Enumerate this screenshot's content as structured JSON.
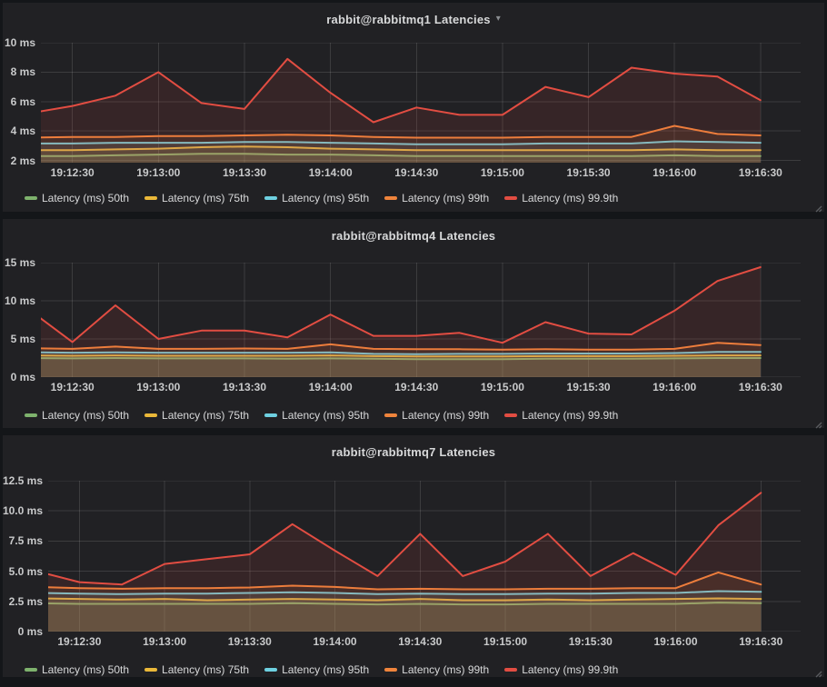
{
  "colors": {
    "page_bg": "#141619",
    "panel_bg": "#212124",
    "grid": "rgba(255,255,255,0.12)",
    "text": "#d8d9da",
    "axis_text": "#c9cacb"
  },
  "chart_data": [
    {
      "type": "area",
      "title": "rabbit@rabbitmq1 Latencies",
      "menu_caret": "▾",
      "ylabel_unit": "ms",
      "grid": true,
      "legend_position": "bottom",
      "ylim": [
        1.85,
        10
      ],
      "x_domain_s": [
        4,
        269
      ],
      "points_t_s": [
        0,
        15,
        30,
        45,
        60,
        75,
        90,
        105,
        120,
        135,
        150,
        165,
        180,
        195,
        210,
        225,
        240,
        255
      ],
      "x_ticks": [
        {
          "t": 15,
          "label": "19:12:30"
        },
        {
          "t": 45,
          "label": "19:13:00"
        },
        {
          "t": 75,
          "label": "19:13:30"
        },
        {
          "t": 105,
          "label": "19:14:00"
        },
        {
          "t": 135,
          "label": "19:14:30"
        },
        {
          "t": 165,
          "label": "19:15:00"
        },
        {
          "t": 195,
          "label": "19:15:30"
        },
        {
          "t": 225,
          "label": "19:16:00"
        },
        {
          "t": 255,
          "label": "19:16:30"
        }
      ],
      "y_ticks": [
        {
          "v": 2,
          "label": "2 ms"
        },
        {
          "v": 4,
          "label": "4 ms"
        },
        {
          "v": 6,
          "label": "6 ms"
        },
        {
          "v": 8,
          "label": "8 ms"
        },
        {
          "v": 10,
          "label": "10 ms"
        }
      ],
      "series": [
        {
          "name": "Latency (ms) 50th",
          "color": "#7EB26D",
          "values": [
            2.3,
            2.3,
            2.35,
            2.4,
            2.45,
            2.45,
            2.4,
            2.4,
            2.35,
            2.3,
            2.3,
            2.3,
            2.3,
            2.3,
            2.3,
            2.35,
            2.3,
            2.3
          ]
        },
        {
          "name": "Latency (ms) 75th",
          "color": "#EAB839",
          "values": [
            2.7,
            2.7,
            2.75,
            2.8,
            2.9,
            2.95,
            2.9,
            2.8,
            2.75,
            2.7,
            2.7,
            2.7,
            2.7,
            2.7,
            2.7,
            2.75,
            2.7,
            2.7
          ]
        },
        {
          "name": "Latency (ms) 95th",
          "color": "#6ED0E0",
          "values": [
            3.15,
            3.15,
            3.2,
            3.2,
            3.2,
            3.25,
            3.25,
            3.2,
            3.15,
            3.1,
            3.1,
            3.1,
            3.15,
            3.15,
            3.15,
            3.3,
            3.25,
            3.2
          ]
        },
        {
          "name": "Latency (ms) 99th",
          "color": "#EF843C",
          "values": [
            3.55,
            3.6,
            3.6,
            3.65,
            3.65,
            3.7,
            3.75,
            3.7,
            3.6,
            3.55,
            3.55,
            3.55,
            3.6,
            3.6,
            3.6,
            4.35,
            3.8,
            3.7
          ]
        },
        {
          "name": "Latency (ms) 99.9th",
          "color": "#E24D42",
          "values": [
            5.2,
            5.7,
            6.4,
            8.0,
            5.9,
            5.5,
            8.9,
            6.6,
            4.6,
            5.6,
            5.1,
            5.1,
            7.0,
            6.3,
            8.3,
            7.9,
            7.7,
            6.1
          ]
        }
      ]
    },
    {
      "type": "area",
      "title": "rabbit@rabbitmq4 Latencies",
      "ylabel_unit": "ms",
      "grid": true,
      "legend_position": "bottom",
      "ylim": [
        0,
        15
      ],
      "x_domain_s": [
        4,
        269
      ],
      "points_t_s": [
        0,
        15,
        30,
        45,
        60,
        75,
        90,
        105,
        120,
        135,
        150,
        165,
        180,
        195,
        210,
        225,
        240,
        255
      ],
      "x_ticks": [
        {
          "t": 15,
          "label": "19:12:30"
        },
        {
          "t": 45,
          "label": "19:13:00"
        },
        {
          "t": 75,
          "label": "19:13:30"
        },
        {
          "t": 105,
          "label": "19:14:00"
        },
        {
          "t": 135,
          "label": "19:14:30"
        },
        {
          "t": 165,
          "label": "19:15:00"
        },
        {
          "t": 195,
          "label": "19:15:30"
        },
        {
          "t": 225,
          "label": "19:16:00"
        },
        {
          "t": 255,
          "label": "19:16:30"
        }
      ],
      "y_ticks": [
        {
          "v": 0,
          "label": "0 ms"
        },
        {
          "v": 5,
          "label": "5 ms"
        },
        {
          "v": 10,
          "label": "10 ms"
        },
        {
          "v": 15,
          "label": "15 ms"
        }
      ],
      "series": [
        {
          "name": "Latency (ms) 50th",
          "color": "#7EB26D",
          "values": [
            2.5,
            2.45,
            2.5,
            2.45,
            2.45,
            2.45,
            2.4,
            2.45,
            2.4,
            2.35,
            2.35,
            2.35,
            2.4,
            2.4,
            2.4,
            2.45,
            2.5,
            2.5
          ]
        },
        {
          "name": "Latency (ms) 75th",
          "color": "#EAB839",
          "values": [
            2.85,
            2.8,
            2.85,
            2.8,
            2.8,
            2.8,
            2.8,
            2.85,
            2.75,
            2.7,
            2.7,
            2.7,
            2.75,
            2.75,
            2.75,
            2.8,
            2.85,
            2.85
          ]
        },
        {
          "name": "Latency (ms) 95th",
          "color": "#6ED0E0",
          "values": [
            3.25,
            3.2,
            3.25,
            3.2,
            3.2,
            3.2,
            3.2,
            3.25,
            3.05,
            3.0,
            3.05,
            3.05,
            3.1,
            3.1,
            3.1,
            3.15,
            3.3,
            3.3
          ]
        },
        {
          "name": "Latency (ms) 99th",
          "color": "#EF843C",
          "values": [
            3.8,
            3.7,
            4.0,
            3.7,
            3.7,
            3.75,
            3.7,
            4.3,
            3.7,
            3.65,
            3.65,
            3.6,
            3.65,
            3.6,
            3.6,
            3.7,
            4.5,
            4.2
          ]
        },
        {
          "name": "Latency (ms) 99.9th",
          "color": "#E24D42",
          "values": [
            8.8,
            4.6,
            9.4,
            5.0,
            6.1,
            6.1,
            5.2,
            8.2,
            5.4,
            5.4,
            5.8,
            4.5,
            7.2,
            5.7,
            5.6,
            8.7,
            12.6,
            14.4
          ]
        }
      ]
    },
    {
      "type": "area",
      "title": "rabbit@rabbitmq7 Latencies",
      "ylabel_unit": "ms",
      "grid": true,
      "legend_position": "bottom",
      "ylim": [
        0,
        12.5
      ],
      "x_domain_s": [
        4,
        269
      ],
      "points_t_s": [
        0,
        15,
        30,
        45,
        60,
        75,
        90,
        105,
        120,
        135,
        150,
        165,
        180,
        195,
        210,
        225,
        240,
        255
      ],
      "x_ticks": [
        {
          "t": 15,
          "label": "19:12:30"
        },
        {
          "t": 45,
          "label": "19:13:00"
        },
        {
          "t": 75,
          "label": "19:13:30"
        },
        {
          "t": 105,
          "label": "19:14:00"
        },
        {
          "t": 135,
          "label": "19:14:30"
        },
        {
          "t": 165,
          "label": "19:15:00"
        },
        {
          "t": 195,
          "label": "19:15:30"
        },
        {
          "t": 225,
          "label": "19:16:00"
        },
        {
          "t": 255,
          "label": "19:16:30"
        }
      ],
      "y_ticks": [
        {
          "v": 0,
          "label": "0 ms"
        },
        {
          "v": 2.5,
          "label": "2.5 ms"
        },
        {
          "v": 5,
          "label": "5.0 ms"
        },
        {
          "v": 7.5,
          "label": "7.5 ms"
        },
        {
          "v": 10,
          "label": "10.0 ms"
        },
        {
          "v": 12.5,
          "label": "12.5 ms"
        }
      ],
      "series": [
        {
          "name": "Latency (ms) 50th",
          "color": "#7EB26D",
          "values": [
            2.35,
            2.3,
            2.3,
            2.3,
            2.3,
            2.3,
            2.35,
            2.3,
            2.25,
            2.3,
            2.25,
            2.25,
            2.3,
            2.3,
            2.3,
            2.3,
            2.4,
            2.35
          ]
        },
        {
          "name": "Latency (ms) 75th",
          "color": "#EAB839",
          "values": [
            2.75,
            2.7,
            2.65,
            2.7,
            2.6,
            2.65,
            2.7,
            2.65,
            2.6,
            2.7,
            2.6,
            2.6,
            2.65,
            2.6,
            2.65,
            2.7,
            2.75,
            2.7
          ]
        },
        {
          "name": "Latency (ms) 95th",
          "color": "#6ED0E0",
          "values": [
            3.2,
            3.15,
            3.1,
            3.15,
            3.15,
            3.2,
            3.25,
            3.2,
            3.1,
            3.15,
            3.1,
            3.1,
            3.15,
            3.15,
            3.2,
            3.2,
            3.35,
            3.3
          ]
        },
        {
          "name": "Latency (ms) 99th",
          "color": "#EF843C",
          "values": [
            3.7,
            3.6,
            3.55,
            3.6,
            3.6,
            3.65,
            3.8,
            3.7,
            3.5,
            3.55,
            3.5,
            3.5,
            3.55,
            3.55,
            3.6,
            3.6,
            4.9,
            3.9
          ]
        },
        {
          "name": "Latency (ms) 99.9th",
          "color": "#E24D42",
          "values": [
            5.0,
            4.1,
            3.9,
            5.6,
            6.0,
            6.4,
            8.9,
            6.7,
            4.6,
            8.1,
            4.6,
            5.8,
            8.1,
            4.6,
            6.5,
            4.7,
            8.8,
            11.5
          ]
        }
      ]
    }
  ]
}
